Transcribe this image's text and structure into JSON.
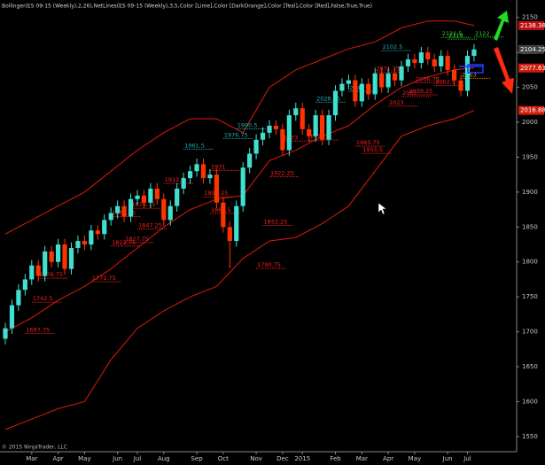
{
  "chart_data": {
    "type": "candlestick",
    "indicator_label": "Bollinger(ES 09-15 (Weekly),2,26),NetLines(ES 09-15 (Weekly),3,5,Color [Lime],Color [DarkOrange],Color [Teal],Color [Red],False,True,True)",
    "footer": "© 2015 NinjaTrader, LLC",
    "up_color": "#40e0d0",
    "down_color": "#ff3300",
    "open": [
      1690,
      1705,
      1738,
      1760,
      1775,
      1795,
      1780,
      1815,
      1800,
      1825,
      1790,
      1820,
      1830,
      1825,
      1845,
      1840,
      1860,
      1870,
      1880,
      1865,
      1890,
      1895,
      1885,
      1905,
      1890,
      1860,
      1880,
      1905,
      1920,
      1930,
      1940,
      1920,
      1925,
      1885,
      1850,
      1830,
      1880,
      1935,
      1955,
      1975,
      1985,
      1995,
      1990,
      1960,
      2010,
      2020,
      1990,
      1980,
      2010,
      1975,
      2010,
      2045,
      2055,
      2060,
      2030,
      2055,
      2040,
      2070,
      2050,
      2070,
      2060,
      2080,
      2090,
      2085,
      2100,
      2090,
      2080,
      2095,
      2075,
      2060,
      2045,
      2095
    ],
    "high": [
      1713,
      1746,
      1768,
      1783,
      1803,
      1803,
      1823,
      1823,
      1833,
      1833,
      1828,
      1838,
      1838,
      1853,
      1853,
      1868,
      1878,
      1888,
      1888,
      1898,
      1903,
      1903,
      1913,
      1913,
      1898,
      1888,
      1913,
      1928,
      1938,
      1948,
      1948,
      1933,
      1933,
      1893,
      1858,
      1888,
      1943,
      1963,
      1983,
      1993,
      2003,
      2003,
      1998,
      2018,
      2028,
      2028,
      1998,
      2018,
      2018,
      2018,
      2053,
      2063,
      2068,
      2068,
      2063,
      2063,
      2078,
      2078,
      2078,
      2078,
      2088,
      2098,
      2098,
      2108,
      2108,
      2098,
      2103,
      2103,
      2083,
      2068,
      2103,
      2112
    ],
    "low": [
      1682,
      1697,
      1730,
      1752,
      1767,
      1772,
      1772,
      1792,
      1792,
      1782,
      1782,
      1812,
      1817,
      1817,
      1832,
      1832,
      1852,
      1862,
      1857,
      1857,
      1882,
      1877,
      1877,
      1882,
      1852,
      1852,
      1872,
      1897,
      1912,
      1922,
      1912,
      1912,
      1877,
      1842,
      1790.75,
      1822,
      1872,
      1927,
      1947,
      1967,
      1977,
      1982,
      1952,
      1952,
      2002,
      1982,
      1972,
      1972,
      1967,
      1967,
      2002,
      2037,
      2047,
      2022,
      2022,
      2032,
      2032,
      2042,
      2042,
      2052,
      2052,
      2072,
      2077,
      2077,
      2082,
      2072,
      2072,
      2067,
      2052,
      2037,
      2037,
      2087
    ],
    "close": [
      1705,
      1738,
      1760,
      1775,
      1795,
      1780,
      1815,
      1800,
      1825,
      1790,
      1820,
      1830,
      1825,
      1845,
      1840,
      1860,
      1870,
      1880,
      1865,
      1890,
      1895,
      1885,
      1905,
      1890,
      1860,
      1880,
      1905,
      1920,
      1930,
      1940,
      1920,
      1925,
      1885,
      1850,
      1830,
      1880,
      1935,
      1955,
      1975,
      1985,
      1995,
      1990,
      1960,
      2010,
      2020,
      1990,
      1980,
      2010,
      1975,
      2010,
      2045,
      2055,
      2060,
      2030,
      2055,
      2040,
      2070,
      2050,
      2070,
      2060,
      2080,
      2090,
      2085,
      2100,
      2090,
      2080,
      2095,
      2075,
      2060,
      2045,
      2095,
      2104.25
    ],
    "bands": {
      "color": "#e01a0a",
      "x": [
        0,
        4,
        8,
        12,
        16,
        20,
        24,
        28,
        32,
        36,
        40,
        44,
        48,
        52,
        56,
        60,
        64,
        68,
        71
      ],
      "series": [
        {
          "values": [
            1840,
            1860,
            1880,
            1900,
            1930,
            1960,
            1985,
            2005,
            2005,
            1985,
            2050,
            2075,
            2090,
            2105,
            2115,
            2135,
            2145,
            2145,
            2138.38
          ]
        },
        {
          "values": [
            1700,
            1720,
            1745,
            1765,
            1790,
            1820,
            1850,
            1875,
            1890,
            1895,
            1945,
            1960,
            1980,
            1995,
            2025,
            2050,
            2065,
            2075,
            2077.63
          ]
        },
        {
          "values": [
            1560,
            1575,
            1590,
            1600,
            1660,
            1705,
            1730,
            1750,
            1765,
            1805,
            1830,
            1835,
            1855,
            1880,
            1930,
            1980,
            1995,
            2005,
            2016.88
          ]
        }
      ]
    },
    "levels": [
      {
        "price": 1697.75,
        "color": "#ff2020",
        "start": 3
      },
      {
        "price": 1742.5,
        "color": "#ff2020",
        "start": 4
      },
      {
        "price": 1776.75,
        "color": "#ff2020",
        "start": 5
      },
      {
        "price": 1771.75,
        "color": "#ff2020",
        "start": 13
      },
      {
        "price": 1822.75,
        "color": "#ff2020",
        "start": 16
      },
      {
        "price": 1827.75,
        "color": "#ff2020",
        "start": 18
      },
      {
        "price": 1864.75,
        "color": "#ff2020",
        "start": 16
      },
      {
        "price": 1876.75,
        "color": "#ff2020",
        "start": 19
      },
      {
        "price": 1847.25,
        "color": "#ff2020",
        "start": 20
      },
      {
        "price": 1912.5,
        "color": "#ff2020",
        "start": 24
      },
      {
        "price": 1931,
        "color": "#ff2020",
        "start": 31
      },
      {
        "price": 1893.25,
        "color": "#ff2020",
        "start": 30
      },
      {
        "price": 1869.5,
        "color": "#ff2020",
        "start": 31
      },
      {
        "price": 1852.25,
        "color": "#ff2020",
        "start": 39
      },
      {
        "price": 1790.75,
        "color": "#ff2020",
        "start": 38
      },
      {
        "price": 1922.25,
        "color": "#ff2020",
        "start": 40
      },
      {
        "price": 1961.5,
        "color": "#20b0b0",
        "start": 27
      },
      {
        "price": 1976.75,
        "color": "#20b0b0",
        "start": 33
      },
      {
        "price": 1990.5,
        "color": "#20b0b0",
        "start": 35
      },
      {
        "price": 1965.75,
        "color": "#ff2020",
        "start": 53
      },
      {
        "price": 1955.5,
        "color": "#ff2020",
        "start": 54
      },
      {
        "price": 1974.5,
        "color": "#ff2020",
        "start": 46
      },
      {
        "price": 1973,
        "color": "#ff2020",
        "start": 42
      },
      {
        "price": 2028.75,
        "color": "#20b0b0",
        "start": 47
      },
      {
        "price": 2044,
        "color": "#20b0b0",
        "start": 52
      },
      {
        "price": 2071.75,
        "color": "#ff2020",
        "start": 56
      },
      {
        "price": 2023,
        "color": "#ff2020",
        "start": 58
      },
      {
        "price": 2039.25,
        "color": "#ff2020",
        "start": 61
      },
      {
        "price": 2037,
        "color": "#ff2020",
        "start": 60
      },
      {
        "price": 2056.75,
        "color": "#ff2020",
        "start": 62
      },
      {
        "price": 2052.5,
        "color": "#ff2020",
        "start": 65
      },
      {
        "price": 2102.5,
        "color": "#20b0b0",
        "start": 57
      },
      {
        "price": 2121.5,
        "color": "#32cd32",
        "start": 66
      },
      {
        "price": 2119,
        "color": "#32cd32",
        "start": 67
      },
      {
        "price": 2122,
        "color": "#32cd32",
        "start": 71
      },
      {
        "price": 2063,
        "color": "#ff8c00",
        "start": 69
      }
    ],
    "price_markers": [
      {
        "value": 2138.38,
        "color": "#c01010"
      },
      {
        "value": 2104.25,
        "color": "#404040"
      },
      {
        "value": 2077.63,
        "color": "#d01a0a"
      },
      {
        "value": 2016.88,
        "color": "#d01a0a"
      }
    ],
    "ylim": [
      1541,
      2175
    ],
    "yticks": [
      1550,
      1600,
      1650,
      1700,
      1750,
      1800,
      1850,
      1900,
      1950,
      2000,
      2050,
      2100,
      2150
    ],
    "xticks": [
      {
        "value": 4,
        "label": "Mar"
      },
      {
        "value": 8,
        "label": "Apr"
      },
      {
        "value": 12,
        "label": "May"
      },
      {
        "value": 17,
        "label": "Jun"
      },
      {
        "value": 20,
        "label": "Jul"
      },
      {
        "value": 24,
        "label": "Aug"
      },
      {
        "value": 29,
        "label": "Sep"
      },
      {
        "value": 33,
        "label": "Oct"
      },
      {
        "value": 38,
        "label": "Nov"
      },
      {
        "value": 42,
        "label": "Dec"
      },
      {
        "value": 45,
        "label": "2015"
      },
      {
        "value": 50,
        "label": "Feb"
      },
      {
        "value": 54,
        "label": "Mar"
      },
      {
        "value": 58,
        "label": "Apr"
      },
      {
        "value": 62,
        "label": "May"
      },
      {
        "value": 67,
        "label": "Jun"
      },
      {
        "value": 70,
        "label": "Jul"
      }
    ]
  }
}
